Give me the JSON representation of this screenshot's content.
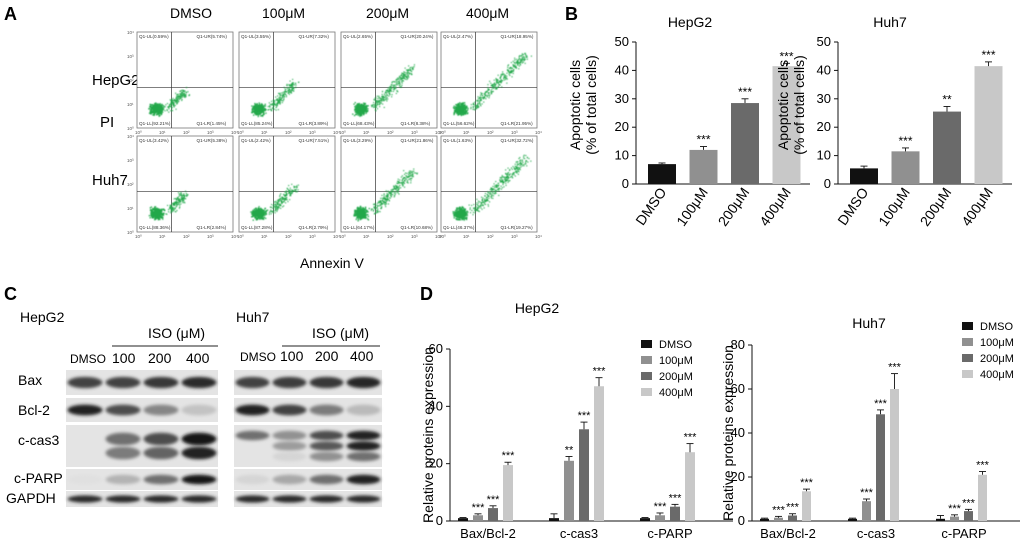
{
  "panel_labels": {
    "a": "A",
    "b": "B",
    "c": "C",
    "d": "D"
  },
  "panelA": {
    "columns": [
      "DMSO",
      "100μM",
      "200μM",
      "400μM"
    ],
    "rows": [
      "HepG2",
      "Huh7"
    ],
    "y_label": "PI",
    "x_label": "Annexin V",
    "quadrant_labels": {
      "HepG2": [
        {
          "ul": "Q1-UL(0.59%)",
          "ur": "Q1-UR(5.74%)",
          "ll": "Q1-LL(92.21%)",
          "lr": "Q1-LR(1.45%)"
        },
        {
          "ul": "Q1-UL(3.55%)",
          "ur": "Q1-UR(7.32%)",
          "ll": "Q1-LL(85.24%)",
          "lr": "Q1-LR(3.89%)"
        },
        {
          "ul": "Q1-UL(2.65%)",
          "ur": "Q1-UR(20.24%)",
          "ll": "Q1-LL(68.43%)",
          "lr": "Q1-LR(8.38%)"
        },
        {
          "ul": "Q1-UL(2.47%)",
          "ur": "Q1-UR(18.95%)",
          "ll": "Q1-LL(56.62%)",
          "lr": "Q1-LR(21.95%)"
        }
      ],
      "Huh7": [
        {
          "ul": "Q1-UL(3.42%)",
          "ur": "Q1-UR(5.38%)",
          "ll": "Q1-LL(88.36%)",
          "lr": "Q1-LR(2.84%)"
        },
        {
          "ul": "Q1-UL(2.42%)",
          "ur": "Q1-UR(7.51%)",
          "ll": "Q1-LL(87.28%)",
          "lr": "Q1-LR(2.79%)"
        },
        {
          "ul": "Q1-UL(3.29%)",
          "ur": "Q1-UR(21.86%)",
          "ll": "Q1-LL(64.17%)",
          "lr": "Q1-LR(10.68%)"
        },
        {
          "ul": "Q1-UL(1.63%)",
          "ur": "Q1-UR(32.72%)",
          "ll": "Q1-LL(46.37%)",
          "lr": "Q1-LR(19.27%)"
        }
      ]
    },
    "axis_ticks": [
      "10⁰",
      "10¹",
      "10²",
      "10³",
      "10⁴"
    ]
  },
  "panelC": {
    "hepg2_title": "HepG2",
    "huh7_title": "Huh7",
    "treatment_label": "ISO (μM)",
    "lanes": [
      "DMSO",
      "100",
      "200",
      "400"
    ],
    "proteins": [
      "Bax",
      "Bcl-2",
      "c-cas3",
      "c-PARP",
      "GAPDH"
    ]
  },
  "chart_data": [
    {
      "type": "bar",
      "title": "HepG2",
      "categories": [
        "DMSO",
        "100μM",
        "200μM",
        "400μM"
      ],
      "values": [
        7,
        12,
        28.5,
        41.5
      ],
      "errors": [
        0.4,
        1.2,
        1.5,
        1.0
      ],
      "significance": [
        "",
        "***",
        "***",
        "***"
      ],
      "colors": [
        "#111111",
        "#909090",
        "#6a6a6a",
        "#c8c8c8"
      ],
      "ylabel": "Apoptotic cells (% of total cells)",
      "ylim": [
        0,
        50
      ],
      "yticks": [
        0,
        10,
        20,
        30,
        40,
        50
      ]
    },
    {
      "type": "bar",
      "title": "Huh7",
      "categories": [
        "DMSO",
        "100μM",
        "200μM",
        "400μM"
      ],
      "values": [
        5.5,
        11.5,
        25.5,
        41.5
      ],
      "errors": [
        0.8,
        1.2,
        1.8,
        1.5
      ],
      "significance": [
        "",
        "***",
        "**",
        "***"
      ],
      "colors": [
        "#111111",
        "#909090",
        "#6a6a6a",
        "#c8c8c8"
      ],
      "ylabel": "Apoptotic cells (% of total cells)",
      "ylim": [
        0,
        50
      ],
      "yticks": [
        0,
        10,
        20,
        30,
        40,
        50
      ]
    },
    {
      "type": "bar",
      "title": "HepG2",
      "categories": [
        "Bax/Bcl-2",
        "c-cas3",
        "c-PARP"
      ],
      "series": [
        {
          "name": "DMSO",
          "color": "#111111",
          "values": [
            1,
            1,
            1
          ],
          "errors": [
            0.2,
            1.5,
            0.2
          ],
          "significance": [
            "",
            "",
            ""
          ]
        },
        {
          "name": "100μM",
          "color": "#909090",
          "values": [
            2,
            21,
            2
          ],
          "errors": [
            0.5,
            1.5,
            0.8
          ],
          "significance": [
            "***",
            "**",
            "***"
          ]
        },
        {
          "name": "200μM",
          "color": "#6a6a6a",
          "values": [
            4.5,
            32,
            5
          ],
          "errors": [
            0.8,
            2.5,
            0.8
          ],
          "significance": [
            "***",
            "***",
            "***"
          ]
        },
        {
          "name": "400μM",
          "color": "#c8c8c8",
          "values": [
            19.5,
            47,
            24
          ],
          "errors": [
            1.0,
            3.0,
            3.0
          ],
          "significance": [
            "***",
            "***",
            "***"
          ]
        }
      ],
      "ylabel": "Relative proteins expression",
      "ylim": [
        0,
        60
      ],
      "yticks": [
        0,
        20,
        40,
        60
      ]
    },
    {
      "type": "bar",
      "title": "Huh7",
      "categories": [
        "Bax/Bcl-2",
        "c-cas3",
        "c-PARP"
      ],
      "series": [
        {
          "name": "DMSO",
          "color": "#111111",
          "values": [
            1,
            1,
            1
          ],
          "errors": [
            0.3,
            0.3,
            1.5
          ],
          "significance": [
            "",
            "",
            ""
          ]
        },
        {
          "name": "100μM",
          "color": "#909090",
          "values": [
            1.5,
            9,
            2
          ],
          "errors": [
            0.6,
            1.0,
            0.8
          ],
          "significance": [
            "***",
            "***",
            "***"
          ]
        },
        {
          "name": "200μM",
          "color": "#6a6a6a",
          "values": [
            2.5,
            48.5,
            4.5
          ],
          "errors": [
            0.8,
            2.0,
            0.8
          ],
          "significance": [
            "***",
            "***",
            "***"
          ]
        },
        {
          "name": "400μM",
          "color": "#c8c8c8",
          "values": [
            13.5,
            60,
            21
          ],
          "errors": [
            1.0,
            7.0,
            1.5
          ],
          "significance": [
            "***",
            "***",
            "***"
          ]
        }
      ],
      "ylabel": "Relative proteins expression",
      "ylim": [
        0,
        80
      ],
      "yticks": [
        0,
        20,
        40,
        60,
        80
      ]
    }
  ]
}
